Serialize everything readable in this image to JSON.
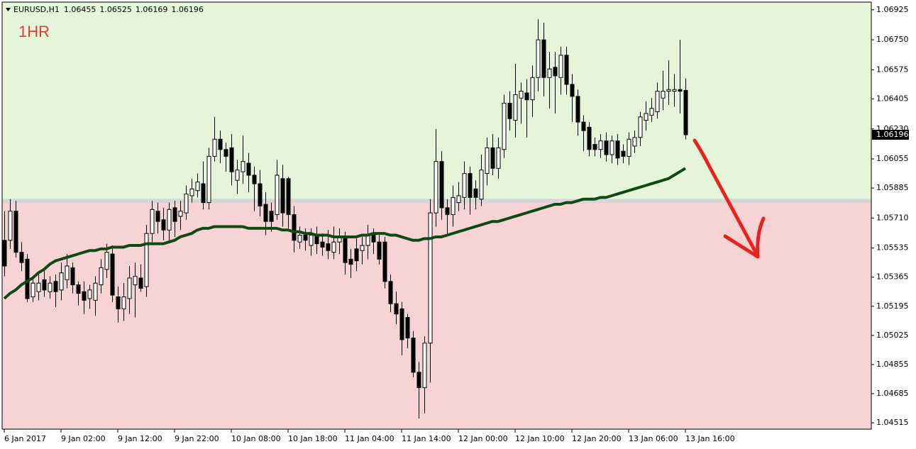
{
  "chart_data": {
    "type": "candlestick",
    "title": "EURUSD,H1",
    "annotation": "1HR",
    "up_color": "#ffffff",
    "down_color": "#000000",
    "zone_split": 1.0581,
    "zone_colors": [
      "#e4f5d9",
      "#f8d3d3"
    ],
    "ylim": [
      1.04478,
      1.0697
    ],
    "yticks": [
      1.06925,
      {
        "value": 1.0675,
        "label": "1.06750"
      },
      1.06575,
      1.06405,
      {
        "value": 1.0623,
        "label": "1.06230"
      },
      1.06055,
      1.05885,
      {
        "value": 1.0571,
        "label": "1.05710"
      },
      1.05535,
      1.05365,
      1.05195,
      1.05025,
      1.04855,
      1.04685,
      1.04515
    ],
    "categories": [
      "6 Jan 2017",
      null,
      null,
      null,
      null,
      null,
      null,
      null,
      null,
      null,
      "9 Jan 02:00",
      null,
      null,
      null,
      null,
      null,
      null,
      null,
      null,
      null,
      "9 Jan 12:00",
      null,
      null,
      null,
      null,
      null,
      null,
      null,
      null,
      null,
      "9 Jan 22:00",
      null,
      null,
      null,
      null,
      null,
      null,
      null,
      null,
      null,
      "10 Jan 08:00",
      null,
      null,
      null,
      null,
      null,
      null,
      null,
      null,
      null,
      "10 Jan 18:00",
      null,
      null,
      null,
      null,
      null,
      null,
      null,
      null,
      null,
      "11 Jan 04:00",
      null,
      null,
      null,
      null,
      null,
      null,
      null,
      null,
      null,
      "11 Jan 14:00",
      null,
      null,
      null,
      null,
      null,
      null,
      null,
      null,
      null,
      "12 Jan 00:00",
      null,
      null,
      null,
      null,
      null,
      null,
      null,
      null,
      null,
      "12 Jan 10:00",
      null,
      null,
      null,
      null,
      null,
      null,
      null,
      null,
      null,
      "12 Jan 20:00",
      null,
      null,
      null,
      null,
      null,
      null,
      null,
      null,
      null,
      "13 Jan 06:00",
      null,
      null,
      null,
      null,
      null,
      null,
      null,
      null,
      null,
      "13 Jan 16:00"
    ],
    "candles": {
      "open": [
        1.0558,
        1.0558,
        1.0575,
        1.0551,
        1.0547,
        1.0525,
        1.0528,
        1.0535,
        1.0528,
        1.0534,
        1.0529,
        1.0535,
        1.0542,
        1.0532,
        1.0528,
        1.0524,
        1.0523,
        1.0532,
        1.0541,
        1.055,
        1.0525,
        1.0518,
        1.0524,
        1.0532,
        1.0536,
        1.0531,
        1.0562,
        1.0575,
        1.057,
        1.0564,
        1.0577,
        1.0572,
        1.0574,
        1.0584,
        1.0587,
        1.0591,
        1.058,
        1.0607,
        1.0617,
        1.0611,
        1.0612,
        1.0593,
        1.0598,
        1.0603,
        1.0596,
        1.0591,
        1.0579,
        1.0575,
        1.0573,
        1.0594,
        1.0594,
        1.0573,
        1.0557,
        1.0561,
        1.0555,
        1.0561,
        1.0557,
        1.0556,
        1.0551,
        1.0557,
        1.0559,
        1.0547,
        1.0553,
        1.0552,
        1.0555,
        1.0561,
        1.0557,
        1.0557,
        1.0534,
        1.0521,
        1.0518,
        1.0513,
        1.0501,
        1.0481,
        1.0472,
        1.0498,
        1.0574,
        1.0604,
        1.0577,
        1.0573,
        1.058,
        1.0583,
        1.0597,
        1.0588,
        1.0582,
        1.0597,
        1.0612,
        1.06,
        1.0611,
        1.0638,
        1.0628,
        1.0641,
        1.0644,
        1.064,
        1.0653,
        1.0675,
        1.0653,
        1.0659,
        1.0653,
        1.0666,
        1.0649,
        1.0642,
        1.0627,
        1.0624,
        1.0614,
        1.0611,
        1.0616,
        1.0608,
        1.0616,
        1.061,
        1.0607,
        1.0613,
        1.0618,
        1.0628,
        1.0631,
        1.0633,
        1.0641,
        1.0645,
        1.0645,
        1.0646,
        1.06455
      ],
      "high": [
        1.0575,
        1.0582,
        1.0581,
        1.0557,
        1.055,
        1.0537,
        1.0539,
        1.0541,
        1.0537,
        1.0538,
        1.0545,
        1.055,
        1.0545,
        1.0534,
        1.0534,
        1.0532,
        1.0537,
        1.0547,
        1.0556,
        1.0555,
        1.0531,
        1.0533,
        1.0543,
        1.0545,
        1.0544,
        1.0567,
        1.0581,
        1.058,
        1.0577,
        1.058,
        1.0581,
        1.0581,
        1.059,
        1.0594,
        1.0597,
        1.0604,
        1.0612,
        1.063,
        1.0622,
        1.0615,
        1.062,
        1.0605,
        1.0619,
        1.0609,
        1.0601,
        1.0599,
        1.0586,
        1.058,
        1.0605,
        1.0602,
        1.0595,
        1.0578,
        1.0566,
        1.0565,
        1.0565,
        1.0566,
        1.0562,
        1.0564,
        1.0566,
        1.0565,
        1.0563,
        1.0553,
        1.0559,
        1.056,
        1.0567,
        1.0565,
        1.0561,
        1.056,
        1.0538,
        1.0528,
        1.0522,
        1.0515,
        1.0505,
        1.0487,
        1.0502,
        1.0582,
        1.0623,
        1.061,
        1.0582,
        1.059,
        1.0592,
        1.0604,
        1.0601,
        1.0593,
        1.0608,
        1.0618,
        1.062,
        1.0618,
        1.0643,
        1.0645,
        1.0661,
        1.065,
        1.0652,
        1.066,
        1.0687,
        1.0685,
        1.0668,
        1.0668,
        1.0671,
        1.0671,
        1.0655,
        1.0646,
        1.0631,
        1.0627,
        1.0618,
        1.062,
        1.0621,
        1.0619,
        1.062,
        1.0614,
        1.0621,
        1.0622,
        1.0633,
        1.0639,
        1.0641,
        1.065,
        1.0657,
        1.0663,
        1.0655,
        1.0675,
        1.06525
      ],
      "low": [
        1.0537,
        1.0553,
        1.0548,
        1.054,
        1.0522,
        1.0522,
        1.0523,
        1.0525,
        1.0524,
        1.0519,
        1.0523,
        1.053,
        1.0527,
        1.052,
        1.0515,
        1.0518,
        1.0514,
        1.0527,
        1.0536,
        1.0522,
        1.051,
        1.0511,
        1.0515,
        1.0513,
        1.0528,
        1.0525,
        1.0557,
        1.0562,
        1.0558,
        1.0557,
        1.056,
        1.0564,
        1.057,
        1.058,
        1.0583,
        1.0576,
        1.0576,
        1.0604,
        1.0603,
        1.0598,
        1.059,
        1.0585,
        1.0591,
        1.0586,
        1.0575,
        1.0572,
        1.0561,
        1.0563,
        1.057,
        1.0566,
        1.0565,
        1.0551,
        1.0553,
        1.0552,
        1.0549,
        1.055,
        1.0549,
        1.0547,
        1.0547,
        1.055,
        1.0538,
        1.0536,
        1.054,
        1.0544,
        1.0547,
        1.055,
        1.0544,
        1.053,
        1.0516,
        1.0509,
        1.0491,
        1.0495,
        1.0478,
        1.0454,
        1.0457,
        1.0475,
        1.0566,
        1.057,
        1.0562,
        1.0566,
        1.0575,
        1.0576,
        1.0573,
        1.0576,
        1.0578,
        1.059,
        1.0596,
        1.0594,
        1.0606,
        1.0622,
        1.0618,
        1.0626,
        1.0618,
        1.063,
        1.0645,
        1.0642,
        1.0635,
        1.0632,
        1.0643,
        1.0643,
        1.0627,
        1.0619,
        1.061,
        1.0607,
        1.0607,
        1.0606,
        1.0604,
        1.0603,
        1.0602,
        1.0603,
        1.0602,
        1.0609,
        1.0613,
        1.0622,
        1.0627,
        1.0629,
        1.0634,
        1.0637,
        1.0636,
        1.0632,
        1.06169
      ],
      "close": [
        1.0543,
        1.0575,
        1.0551,
        1.0545,
        1.0524,
        1.0533,
        1.0533,
        1.0529,
        1.0533,
        1.0528,
        1.0539,
        1.0543,
        1.0532,
        1.0527,
        1.0523,
        1.0529,
        1.0533,
        1.0542,
        1.0551,
        1.0526,
        1.0518,
        1.0525,
        1.0536,
        1.0537,
        1.053,
        1.0562,
        1.0576,
        1.0569,
        1.0564,
        1.0576,
        1.0569,
        1.0575,
        1.0585,
        1.0588,
        1.0592,
        1.058,
        1.0607,
        1.0617,
        1.0611,
        1.0607,
        1.0598,
        1.0599,
        1.0604,
        1.0596,
        1.0591,
        1.0578,
        1.0569,
        1.0569,
        1.0596,
        1.0574,
        1.0573,
        1.0558,
        1.0561,
        1.0558,
        1.0561,
        1.0556,
        1.0554,
        1.0552,
        1.0557,
        1.056,
        1.0545,
        1.0544,
        1.0546,
        1.0555,
        1.0561,
        1.0557,
        1.0547,
        1.0534,
        1.0521,
        1.0515,
        1.05,
        1.0501,
        1.0481,
        1.0472,
        1.0498,
        1.0574,
        1.0604,
        1.0577,
        1.0573,
        1.0583,
        1.0584,
        1.0597,
        1.0583,
        1.0583,
        1.0599,
        1.0612,
        1.06,
        1.0612,
        1.0638,
        1.0629,
        1.0643,
        1.0645,
        1.064,
        1.0653,
        1.0675,
        1.0653,
        1.0658,
        1.0654,
        1.0666,
        1.0649,
        1.0642,
        1.0627,
        1.0622,
        1.0611,
        1.0611,
        1.0616,
        1.0608,
        1.0616,
        1.0606,
        1.0607,
        1.0617,
        1.0618,
        1.063,
        1.0632,
        1.0635,
        1.0645,
        1.0645,
        1.0646,
        1.0646,
        1.0645,
        1.06196
      ]
    },
    "ma": {
      "color": "#0e4a14",
      "values": [
        1.0524,
        1.0527,
        1.0529,
        1.0532,
        1.0534,
        1.0536,
        1.0539,
        1.0541,
        1.0544,
        1.0546,
        1.0547,
        1.0548,
        1.0549,
        1.055,
        1.0551,
        1.0552,
        1.0552,
        1.0553,
        1.0553,
        1.0554,
        1.0554,
        1.0554,
        1.0555,
        1.0555,
        1.0555,
        1.0556,
        1.0556,
        1.0556,
        1.0556,
        1.0557,
        1.0558,
        1.056,
        1.0561,
        1.0562,
        1.0564,
        1.0565,
        1.0565,
        1.0566,
        1.0566,
        1.0566,
        1.0566,
        1.0566,
        1.0566,
        1.0565,
        1.0565,
        1.0565,
        1.0565,
        1.0565,
        1.0565,
        1.0564,
        1.0564,
        1.0563,
        1.0563,
        1.0562,
        1.0562,
        1.0561,
        1.0561,
        1.0561,
        1.056,
        1.056,
        1.056,
        1.056,
        1.056,
        1.0561,
        1.0561,
        1.0562,
        1.0562,
        1.0562,
        1.0561,
        1.0561,
        1.056,
        1.0559,
        1.0558,
        1.0558,
        1.0559,
        1.0559,
        1.056,
        1.056,
        1.0561,
        1.0562,
        1.0563,
        1.0564,
        1.0565,
        1.0566,
        1.0567,
        1.0568,
        1.0569,
        1.0569,
        1.057,
        1.0571,
        1.0572,
        1.0573,
        1.0574,
        1.0575,
        1.0576,
        1.0577,
        1.0578,
        1.0579,
        1.0579,
        1.058,
        1.058,
        1.0581,
        1.0582,
        1.0582,
        1.0582,
        1.0583,
        1.0583,
        1.0584,
        1.0585,
        1.0586,
        1.0587,
        1.0588,
        1.0589,
        1.059,
        1.0591,
        1.0592,
        1.0593,
        1.0594,
        1.0596,
        1.0598,
        1.06
      ]
    }
  }
}
